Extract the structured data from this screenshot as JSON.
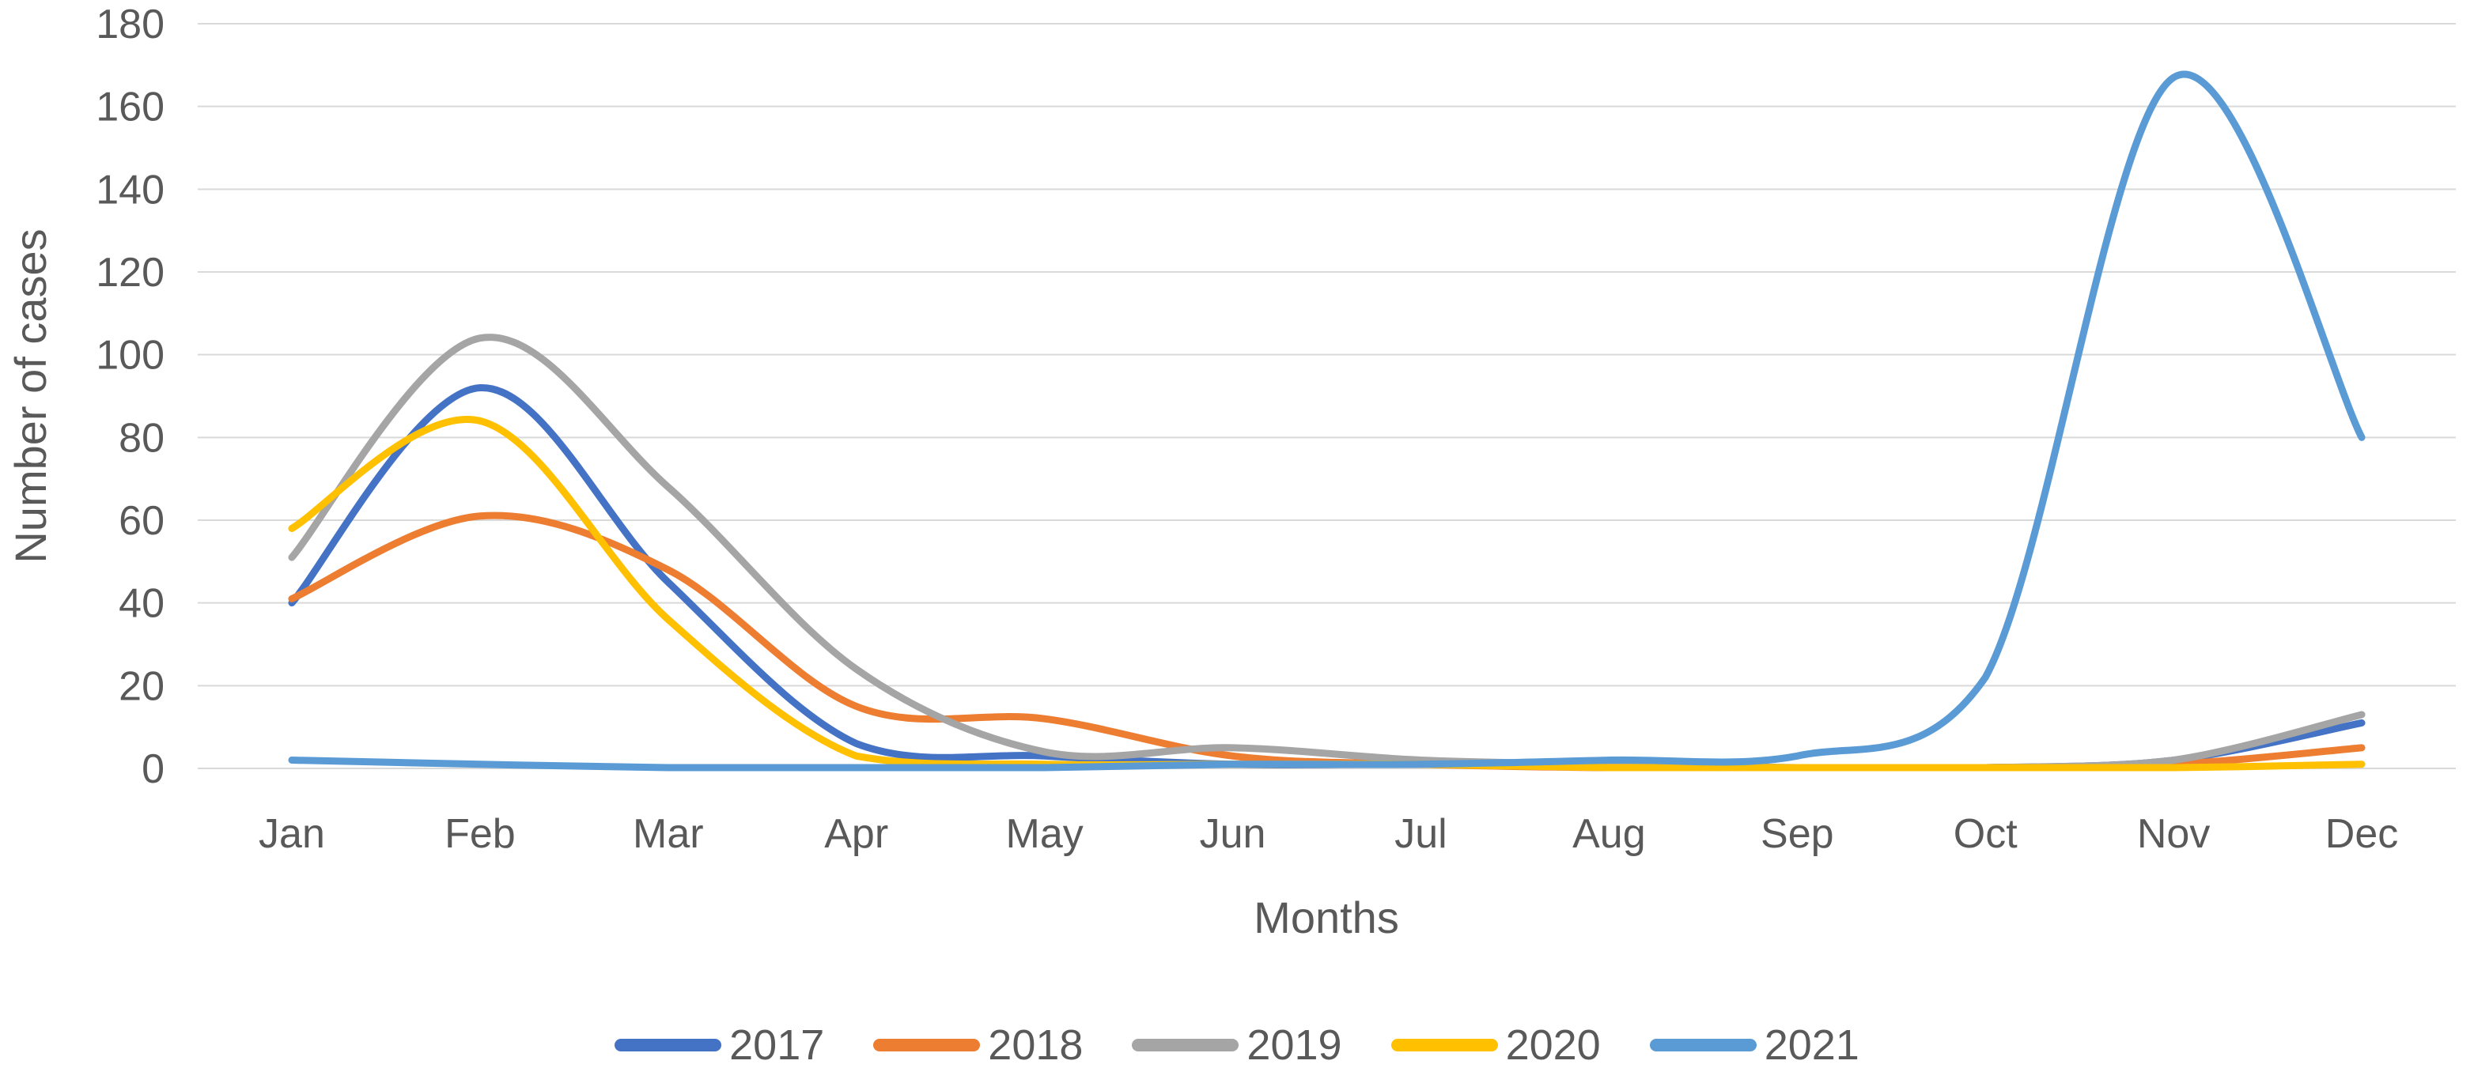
{
  "chart_data": {
    "type": "line",
    "smooth": true,
    "title": "",
    "xlabel": "Months",
    "ylabel": "Number of cases",
    "ylim": [
      0,
      180
    ],
    "yticks": [
      0,
      20,
      40,
      60,
      80,
      100,
      120,
      140,
      160,
      180
    ],
    "grid": true,
    "legend_position": "bottom",
    "gridline_color": "#D9D9D9",
    "text_color": "#595959",
    "categories": [
      "Jan",
      "Feb",
      "Mar",
      "Apr",
      "May",
      "Jun",
      "Jul",
      "Aug",
      "Sep",
      "Oct",
      "Nov",
      "Dec"
    ],
    "series": [
      {
        "name": "2017",
        "color": "#4472C4",
        "values": [
          40,
          92,
          45,
          6,
          3,
          1,
          1,
          0,
          0,
          0,
          2,
          11
        ]
      },
      {
        "name": "2018",
        "color": "#ED7D31",
        "values": [
          41,
          61,
          48,
          15,
          12,
          3,
          1,
          0,
          0,
          0,
          1,
          5
        ]
      },
      {
        "name": "2019",
        "color": "#A5A5A5",
        "values": [
          51,
          104,
          68,
          24,
          4,
          5,
          2,
          1,
          0,
          0,
          2,
          13
        ]
      },
      {
        "name": "2020",
        "color": "#FFC000",
        "values": [
          58,
          84,
          36,
          3,
          1,
          1,
          1,
          0,
          0,
          0,
          0,
          1
        ]
      },
      {
        "name": "2021",
        "color": "#5B9BD5",
        "values": [
          2,
          1,
          0,
          0,
          0,
          1,
          1,
          2,
          3,
          22,
          167,
          80
        ]
      }
    ]
  }
}
